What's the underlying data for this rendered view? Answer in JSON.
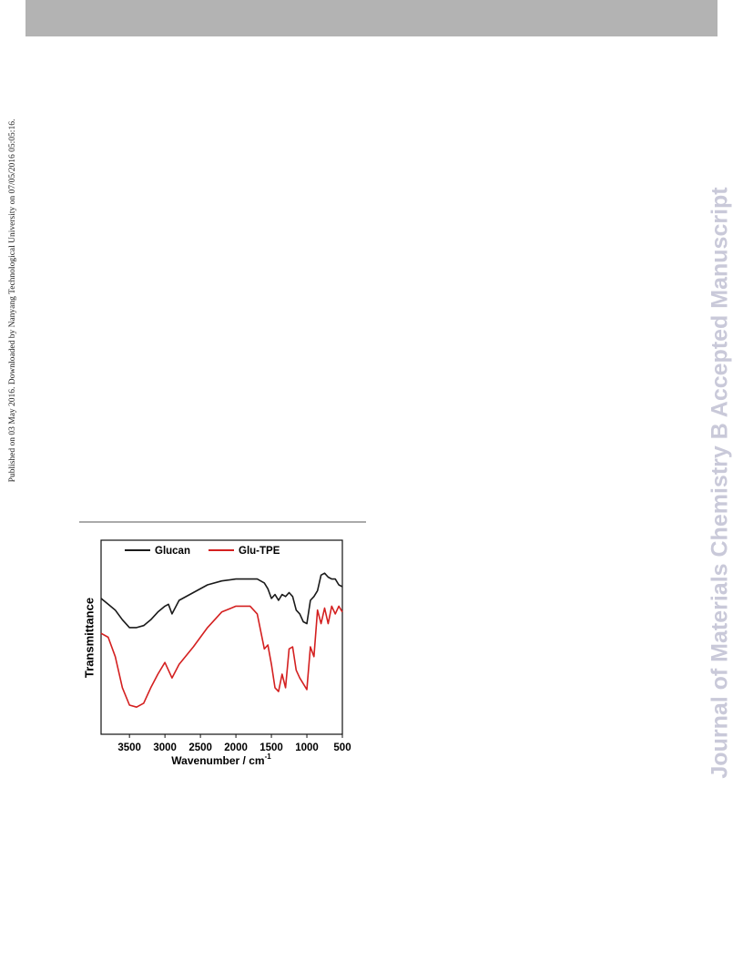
{
  "side_note": "Published on 03 May 2016. Downloaded by Nanyang Technological University on 07/05/2016 05:05:16.",
  "watermark": "Journal of Materials Chemistry B Accepted Manuscript",
  "chart_data": {
    "type": "line",
    "x_label": "Wavenumber / cm",
    "x_label_sup": "-1",
    "y_label": "Transmittance",
    "x": [
      3900,
      3800,
      3700,
      3600,
      3500,
      3400,
      3300,
      3200,
      3100,
      3000,
      2950,
      2900,
      2800,
      2600,
      2400,
      2200,
      2000,
      1800,
      1700,
      1600,
      1550,
      1500,
      1450,
      1400,
      1350,
      1300,
      1250,
      1200,
      1150,
      1100,
      1050,
      1000,
      950,
      900,
      850,
      800,
      750,
      700,
      650,
      600,
      550,
      500
    ],
    "series": [
      {
        "name": "Glucan",
        "color": "#1a1a1a",
        "values": [
          70,
          67,
          64,
          59,
          55,
          55,
          56,
          59,
          63,
          66,
          67,
          62,
          69,
          73,
          77,
          79,
          80,
          80,
          80,
          78,
          75,
          70,
          72,
          69,
          72,
          71,
          73,
          71,
          64,
          62,
          58,
          57,
          69,
          71,
          74,
          82,
          83,
          81,
          80,
          80,
          77,
          76
        ]
      },
      {
        "name": "Glu-TPE",
        "color": "#d42020",
        "values": [
          52,
          50,
          40,
          24,
          15,
          14,
          16,
          24,
          31,
          37,
          33,
          29,
          36,
          45,
          55,
          63,
          66,
          66,
          62,
          44,
          46,
          36,
          24,
          22,
          31,
          24,
          44,
          45,
          33,
          29,
          26,
          23,
          45,
          40,
          64,
          57,
          65,
          57,
          66,
          62,
          66,
          63
        ]
      }
    ],
    "xlim": [
      3900,
      500
    ],
    "xticks": [
      3500,
      3000,
      2500,
      2000,
      1500,
      1000,
      500
    ],
    "ylim": [
      0,
      100
    ]
  }
}
